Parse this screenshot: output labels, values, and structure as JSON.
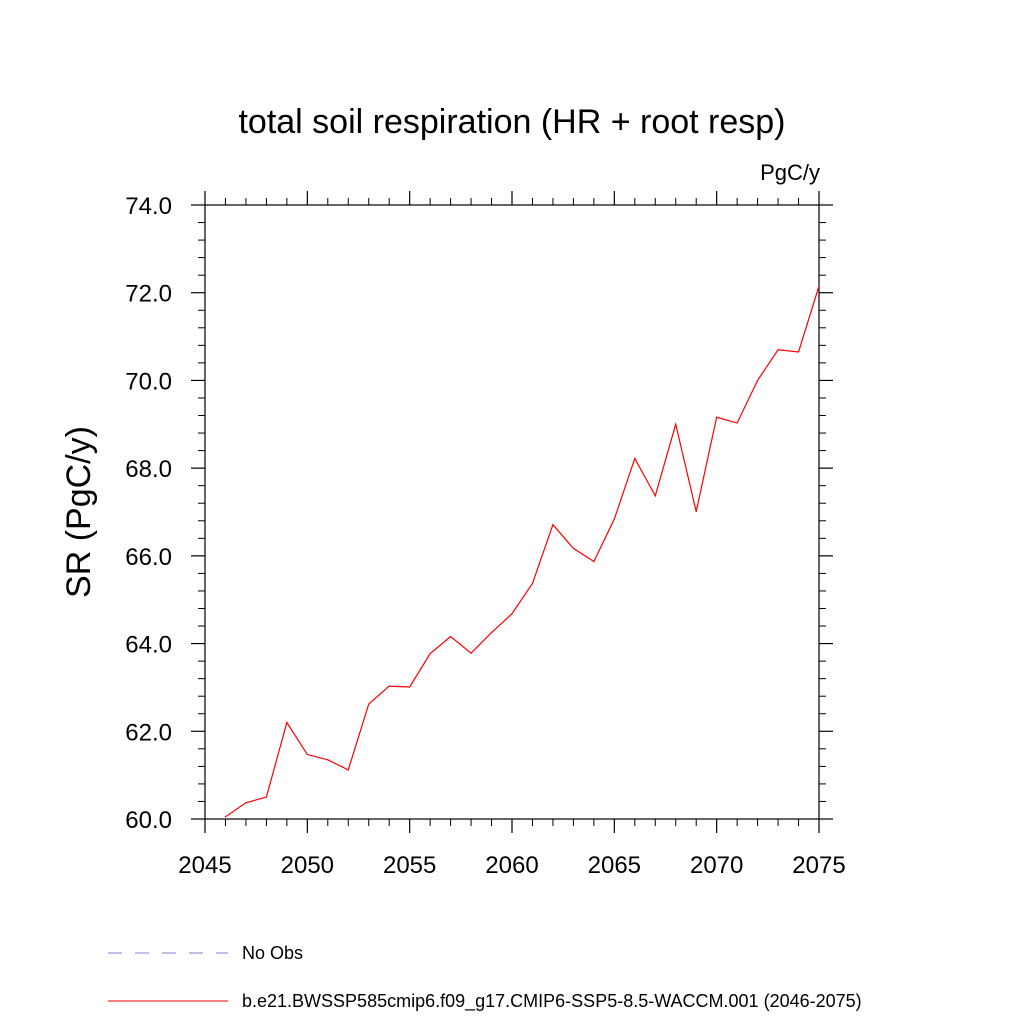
{
  "chart_data": {
    "type": "line",
    "title": "total soil respiration (HR + root resp)",
    "units": "PgC/y",
    "xlabel": "",
    "ylabel": "SR  (PgC/y)",
    "xlim": [
      2045,
      2075
    ],
    "ylim": [
      60,
      74
    ],
    "x_ticks": [
      2045,
      2050,
      2055,
      2060,
      2065,
      2070,
      2075
    ],
    "x_tick_labels": [
      "2045",
      "2050",
      "2055",
      "2060",
      "2065",
      "2070",
      "2075"
    ],
    "y_ticks": [
      60,
      62,
      64,
      66,
      68,
      70,
      72,
      74
    ],
    "y_tick_labels": [
      "60.0",
      "62.0",
      "64.0",
      "66.0",
      "68.0",
      "70.0",
      "72.0",
      "74.0"
    ],
    "grid": false,
    "series": [
      {
        "name": "b.e21.BWSSP585cmip6.f09_g17.CMIP6-SSP5-8.5-WACCM.001 (2046-2075)",
        "color": "#ff0000",
        "style": "solid",
        "x": [
          2046,
          2047,
          2048,
          2049,
          2050,
          2051,
          2052,
          2053,
          2054,
          2055,
          2056,
          2057,
          2058,
          2059,
          2060,
          2061,
          2062,
          2063,
          2064,
          2065,
          2066,
          2067,
          2068,
          2069,
          2070,
          2071,
          2072,
          2073,
          2074,
          2075
        ],
        "values": [
          60.05,
          60.37,
          60.5,
          62.2,
          61.47,
          61.35,
          61.12,
          62.62,
          63.03,
          63.01,
          63.77,
          64.16,
          63.78,
          64.25,
          64.68,
          65.37,
          66.71,
          66.17,
          65.87,
          66.84,
          68.22,
          67.37,
          69.0,
          67.01,
          69.16,
          69.03,
          70.0,
          70.7,
          70.65,
          72.15
        ]
      }
    ],
    "legend": [
      {
        "label": "No Obs",
        "color": "#7f7fcf",
        "style": "dashed"
      },
      {
        "label": "b.e21.BWSSP585cmip6.f09_g17.CMIP6-SSP5-8.5-WACCM.001 (2046-2075)",
        "color": "#ff0000",
        "style": "solid"
      }
    ],
    "legend_position": "bottom-left"
  }
}
